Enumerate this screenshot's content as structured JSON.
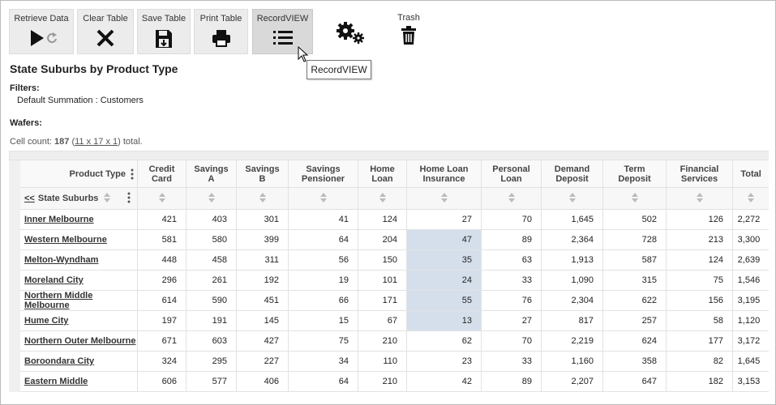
{
  "toolbar": {
    "buttons": [
      "Retrieve Data",
      "Clear Table",
      "Save Table",
      "Print Table",
      "RecordVIEW"
    ],
    "trash": "Trash",
    "tooltip": "RecordVIEW"
  },
  "title": "State Suburbs by Product Type",
  "filters": {
    "label": "Filters:",
    "items": [
      "Default Summation : Customers"
    ]
  },
  "wafers": {
    "label": "Wafers:"
  },
  "cell_count": {
    "prefix": "Cell count: ",
    "count": "187",
    "open": " (",
    "link": "11 x 17 x 1",
    "suffix": ") total."
  },
  "table": {
    "column_header": "Product Type",
    "drill_link": "<<",
    "row_header": "State Suburbs",
    "columns": [
      "Credit Card",
      "Savings A",
      "Savings B",
      "Savings Pensioner",
      "Home Loan",
      "Home Loan Insurance",
      "Personal Loan",
      "Demand Deposit",
      "Term Deposit",
      "Financial Services",
      "Total"
    ],
    "rows": [
      {
        "label": "Inner Melbourne",
        "values": [
          "421",
          "403",
          "301",
          "41",
          "124",
          "27",
          "70",
          "1,645",
          "502",
          "126",
          "2,272"
        ]
      },
      {
        "label": "Western Melbourne",
        "values": [
          "581",
          "580",
          "399",
          "64",
          "204",
          "47",
          "89",
          "2,364",
          "728",
          "213",
          "3,300"
        ]
      },
      {
        "label": "Melton-Wyndham",
        "values": [
          "448",
          "458",
          "311",
          "56",
          "150",
          "35",
          "63",
          "1,913",
          "587",
          "124",
          "2,639"
        ]
      },
      {
        "label": "Moreland City",
        "values": [
          "296",
          "261",
          "192",
          "19",
          "101",
          "24",
          "33",
          "1,090",
          "315",
          "75",
          "1,546"
        ]
      },
      {
        "label": "Northern Middle Melbourne",
        "values": [
          "614",
          "590",
          "451",
          "66",
          "171",
          "55",
          "76",
          "2,304",
          "622",
          "156",
          "3,195"
        ]
      },
      {
        "label": "Hume City",
        "values": [
          "197",
          "191",
          "145",
          "15",
          "67",
          "13",
          "27",
          "817",
          "257",
          "58",
          "1,120"
        ]
      },
      {
        "label": "Northern Outer Melbourne",
        "values": [
          "671",
          "603",
          "427",
          "75",
          "210",
          "62",
          "70",
          "2,219",
          "624",
          "177",
          "3,172"
        ]
      },
      {
        "label": "Boroondara City",
        "values": [
          "324",
          "295",
          "227",
          "34",
          "110",
          "23",
          "33",
          "1,160",
          "358",
          "82",
          "1,645"
        ]
      },
      {
        "label": "Eastern Middle",
        "values": [
          "606",
          "577",
          "406",
          "64",
          "210",
          "42",
          "89",
          "2,207",
          "647",
          "182",
          "3,153"
        ]
      }
    ]
  }
}
